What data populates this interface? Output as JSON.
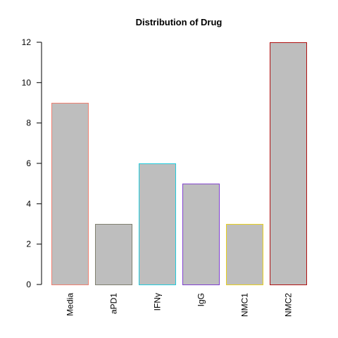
{
  "chart_data": {
    "type": "bar",
    "title": "Distribution of Drug",
    "xlabel": "",
    "ylabel": "",
    "categories": [
      "Media",
      "aPD1",
      "IFNγ",
      "IgG",
      "NMC1",
      "NMC2"
    ],
    "values": [
      9,
      3,
      6,
      5,
      3,
      12
    ],
    "ylim": [
      0,
      12
    ],
    "yticks": [
      0,
      2,
      4,
      6,
      8,
      10,
      12
    ],
    "bar_fill": "#bebebe",
    "bar_borders": [
      "#f08070",
      "#808070",
      "#22ccdd",
      "#8040d0",
      "#e8d020",
      "#b01010"
    ],
    "grid": false,
    "legend": "none"
  }
}
